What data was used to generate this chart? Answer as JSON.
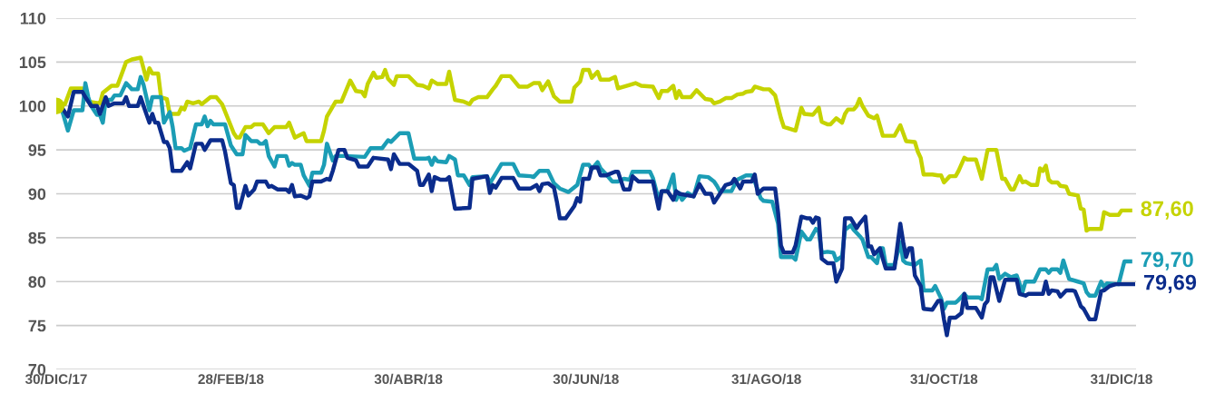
{
  "chart_data": {
    "type": "line",
    "xlim": [
      "2017-12-30",
      "2019-01-05"
    ],
    "xticks": [
      {
        "value": "2017-12-30",
        "label": "30/DIC/17"
      },
      {
        "value": "2018-02-28",
        "label": "28/FEB/18"
      },
      {
        "value": "2018-04-30",
        "label": "30/ABR/18"
      },
      {
        "value": "2018-06-30",
        "label": "30/JUN/18"
      },
      {
        "value": "2018-08-31",
        "label": "31/AGO/18"
      },
      {
        "value": "2018-10-31",
        "label": "31/OCT/18"
      },
      {
        "value": "2018-12-31",
        "label": "31/DIC/18"
      }
    ],
    "ylim": [
      70,
      110
    ],
    "yticks": [
      70,
      75,
      80,
      85,
      90,
      95,
      100,
      105,
      110
    ],
    "grid": "y",
    "annotations": [
      "87,60",
      "79,70",
      "79,69"
    ],
    "series": [
      {
        "color": "#c5d300",
        "x": [
          "2017-12-30",
          "2018-01-02",
          "2018-01-04",
          "2018-01-08",
          "2018-01-10",
          "2018-01-14",
          "2018-01-15",
          "2018-01-18",
          "2018-01-20",
          "2018-01-23",
          "2018-01-25",
          "2018-01-28",
          "2018-01-30",
          "2018-01-31",
          "2018-02-01",
          "2018-02-03",
          "2018-02-04",
          "2018-02-06",
          "2018-02-07",
          "2018-02-10",
          "2018-02-11",
          "2018-02-12",
          "2018-02-13",
          "2018-02-15",
          "2018-02-17",
          "2018-02-18",
          "2018-02-21",
          "2018-02-23",
          "2018-02-25",
          "2018-03-01",
          "2018-03-02",
          "2018-03-03",
          "2018-03-05",
          "2018-03-07",
          "2018-03-08",
          "2018-03-11",
          "2018-03-13",
          "2018-03-15",
          "2018-03-19",
          "2018-03-20",
          "2018-03-22",
          "2018-03-25",
          "2018-03-26",
          "2018-03-31",
          "2018-04-01",
          "2018-04-02",
          "2018-04-05",
          "2018-04-07",
          "2018-04-10",
          "2018-04-12",
          "2018-04-14",
          "2018-04-15",
          "2018-04-16",
          "2018-04-18",
          "2018-04-19",
          "2018-04-21",
          "2018-04-22",
          "2018-04-23",
          "2018-04-25",
          "2018-04-26",
          "2018-04-30",
          "2018-05-03",
          "2018-05-05",
          "2018-05-07",
          "2018-05-08",
          "2018-05-10",
          "2018-05-13",
          "2018-05-14",
          "2018-05-16",
          "2018-05-19",
          "2018-05-21",
          "2018-05-22",
          "2018-05-24",
          "2018-05-27",
          "2018-05-29",
          "2018-05-30",
          "2018-06-01",
          "2018-06-04",
          "2018-06-07",
          "2018-06-10",
          "2018-06-12",
          "2018-06-14",
          "2018-06-15",
          "2018-06-17",
          "2018-06-19",
          "2018-06-21",
          "2018-06-25",
          "2018-06-26",
          "2018-06-28",
          "2018-06-29",
          "2018-07-01",
          "2018-07-02",
          "2018-07-04",
          "2018-07-05",
          "2018-07-08",
          "2018-07-10",
          "2018-07-11",
          "2018-07-15",
          "2018-07-17",
          "2018-07-19",
          "2018-07-23",
          "2018-07-25",
          "2018-07-26",
          "2018-07-28",
          "2018-07-30",
          "2018-07-31",
          "2018-08-01",
          "2018-08-02",
          "2018-08-05",
          "2018-08-07",
          "2018-08-10",
          "2018-08-12",
          "2018-08-13",
          "2018-08-15",
          "2018-08-17",
          "2018-08-19",
          "2018-08-21",
          "2018-08-23",
          "2018-08-24",
          "2018-08-26",
          "2018-08-27",
          "2018-08-30",
          "2018-09-01",
          "2018-09-03",
          "2018-09-05",
          "2018-09-06",
          "2018-09-08",
          "2018-09-10",
          "2018-09-12",
          "2018-09-13",
          "2018-09-16",
          "2018-09-18",
          "2018-09-19",
          "2018-09-21",
          "2018-09-22",
          "2018-09-24",
          "2018-09-26",
          "2018-09-27",
          "2018-09-28",
          "2018-09-30",
          "2018-10-01",
          "2018-10-02",
          "2018-10-03",
          "2018-10-05",
          "2018-10-07",
          "2018-10-08",
          "2018-10-10",
          "2018-10-14",
          "2018-10-16",
          "2018-10-18",
          "2018-10-21",
          "2018-10-22",
          "2018-10-23",
          "2018-10-24",
          "2018-10-27",
          "2018-10-29",
          "2018-10-30",
          "2018-10-31",
          "2018-11-02",
          "2018-11-04",
          "2018-11-05",
          "2018-11-07",
          "2018-11-08",
          "2018-11-11",
          "2018-11-13",
          "2018-11-15",
          "2018-11-18",
          "2018-11-20",
          "2018-11-21",
          "2018-11-23",
          "2018-11-24",
          "2018-11-26",
          "2018-11-27",
          "2018-11-28",
          "2018-11-30",
          "2018-12-02",
          "2018-12-03",
          "2018-12-04",
          "2018-12-05",
          "2018-12-06",
          "2018-12-07",
          "2018-12-09",
          "2018-12-10",
          "2018-12-12",
          "2018-12-13",
          "2018-12-16",
          "2018-12-17",
          "2018-12-18",
          "2018-12-19",
          "2018-12-20",
          "2018-12-24",
          "2018-12-25",
          "2018-12-27",
          "2018-12-30",
          "2018-12-31",
          "2019-01-03"
        ],
        "values": [
          100,
          100.2,
          102,
          102,
          100.5,
          100.3,
          101.5,
          102.3,
          102.3,
          105,
          105.3,
          105.5,
          103,
          104.3,
          103.7,
          103.7,
          101,
          100.8,
          99.1,
          99.1,
          99.8,
          99.6,
          100.5,
          100.3,
          100.5,
          100.2,
          101,
          101,
          100.2,
          96.9,
          96.4,
          96.4,
          97.6,
          97.6,
          97.9,
          97.9,
          96.9,
          97.6,
          97.6,
          98.1,
          96.4,
          96.9,
          96.0,
          96.0,
          97.2,
          98.8,
          100.5,
          100.5,
          102.9,
          101.7,
          101.6,
          101.1,
          102.5,
          103.8,
          103.2,
          103.3,
          104.1,
          103.1,
          102.4,
          103.4,
          103.4,
          102.4,
          102.3,
          102,
          102.9,
          102.5,
          102.5,
          103.9,
          100.7,
          100.5,
          100.2,
          100.7,
          101,
          101,
          101.9,
          102.3,
          103.4,
          103.4,
          102.2,
          102.2,
          102.6,
          102.6,
          101.8,
          102.8,
          101.1,
          100.5,
          100.5,
          102.1,
          102.8,
          104.1,
          104.1,
          103.2,
          103.9,
          103,
          103,
          103.3,
          102,
          102.4,
          102.6,
          102.3,
          102.2,
          100.9,
          101.7,
          101.7,
          102.3,
          100.9,
          101.7,
          101,
          101,
          101.8,
          100.8,
          100.7,
          100.3,
          100.5,
          100.9,
          100.9,
          101.3,
          101.4,
          101.6,
          101.7,
          102.2,
          101.9,
          101.9,
          101.2,
          98.6,
          97.6,
          97.4,
          97.2,
          99.8,
          99.1,
          99.0,
          99.8,
          98.2,
          97.9,
          97.9,
          98.6,
          98.1,
          99.1,
          99.6,
          99.6,
          100.0,
          100.8,
          100,
          98.9,
          98.6,
          98.9,
          96.6,
          96.6,
          97.8,
          96.0,
          95.9,
          94.8,
          94.1,
          92.2,
          92.2,
          92.1,
          92.1,
          91.3,
          92.0,
          92.0,
          92.6,
          94.1,
          93.9,
          93.9,
          91.7,
          95.0,
          95.0,
          91.7,
          91.7,
          90.5,
          90.5,
          92.0,
          91.3,
          91.4,
          91.0,
          91.0,
          92.9,
          92.6,
          93.2,
          91.6,
          91.3,
          91.3,
          90.9,
          90.8,
          90.0,
          89.8,
          88.3,
          88.2,
          85.8,
          86.0,
          86.0,
          87.9,
          87.6,
          87.6,
          88.1,
          88.1
        ]
      },
      {
        "color": "#1b9db5",
        "x": [
          "2017-12-30",
          "2018-01-01",
          "2018-01-03",
          "2018-01-05",
          "2018-01-08",
          "2018-01-09",
          "2018-01-10",
          "2018-01-11",
          "2018-01-13",
          "2018-01-14",
          "2018-01-15",
          "2018-01-16",
          "2018-01-18",
          "2018-01-19",
          "2018-01-21",
          "2018-01-23",
          "2018-01-25",
          "2018-01-27",
          "2018-01-28",
          "2018-01-29",
          "2018-01-31",
          "2018-02-01",
          "2018-02-04",
          "2018-02-05",
          "2018-02-07",
          "2018-02-08",
          "2018-02-09",
          "2018-02-11",
          "2018-02-12",
          "2018-02-14",
          "2018-02-16",
          "2018-02-18",
          "2018-02-19",
          "2018-02-20",
          "2018-02-21",
          "2018-02-22",
          "2018-02-26",
          "2018-02-28",
          "2018-03-02",
          "2018-03-04",
          "2018-03-05",
          "2018-03-07",
          "2018-03-09",
          "2018-03-10",
          "2018-03-11",
          "2018-03-12",
          "2018-03-13",
          "2018-03-15",
          "2018-03-16",
          "2018-03-19",
          "2018-03-20",
          "2018-03-21",
          "2018-03-22",
          "2018-03-24",
          "2018-03-25",
          "2018-03-27",
          "2018-03-28",
          "2018-03-31",
          "2018-04-01",
          "2018-04-02",
          "2018-04-04",
          "2018-04-05",
          "2018-04-08",
          "2018-04-15",
          "2018-04-17",
          "2018-04-21",
          "2018-04-23",
          "2018-04-24",
          "2018-04-27",
          "2018-04-30",
          "2018-05-02",
          "2018-05-06",
          "2018-05-07",
          "2018-05-08",
          "2018-05-09",
          "2018-05-10",
          "2018-05-13",
          "2018-05-14",
          "2018-05-16",
          "2018-05-17",
          "2018-05-19",
          "2018-05-21",
          "2018-05-22",
          "2018-05-27",
          "2018-05-28",
          "2018-06-01",
          "2018-06-05",
          "2018-06-07",
          "2018-06-11",
          "2018-06-12",
          "2018-06-14",
          "2018-06-17",
          "2018-06-19",
          "2018-06-21",
          "2018-06-24",
          "2018-06-27",
          "2018-06-29",
          "2018-07-01",
          "2018-07-02",
          "2018-07-04",
          "2018-07-05",
          "2018-07-07",
          "2018-07-09",
          "2018-07-11",
          "2018-07-13",
          "2018-07-15",
          "2018-07-16",
          "2018-07-22",
          "2018-07-23",
          "2018-07-25",
          "2018-07-26",
          "2018-07-28",
          "2018-07-30",
          "2018-07-31",
          "2018-08-01",
          "2018-08-02",
          "2018-08-04",
          "2018-08-06",
          "2018-08-08",
          "2018-08-11",
          "2018-08-13",
          "2018-08-14",
          "2018-08-15",
          "2018-08-19",
          "2018-08-21",
          "2018-08-24",
          "2018-08-26",
          "2018-08-27",
          "2018-08-29",
          "2018-08-30",
          "2018-09-02",
          "2018-09-04",
          "2018-09-05",
          "2018-09-09",
          "2018-09-10",
          "2018-09-12",
          "2018-09-14",
          "2018-09-15",
          "2018-09-17",
          "2018-09-18",
          "2018-09-19",
          "2018-09-21",
          "2018-09-23",
          "2018-09-24",
          "2018-09-26",
          "2018-09-27",
          "2018-09-29",
          "2018-09-30",
          "2018-10-02",
          "2018-10-03",
          "2018-10-05",
          "2018-10-06",
          "2018-10-08",
          "2018-10-09",
          "2018-10-10",
          "2018-10-11",
          "2018-10-14",
          "2018-10-16",
          "2018-10-17",
          "2018-10-18",
          "2018-10-21",
          "2018-10-23",
          "2018-10-24",
          "2018-10-27",
          "2018-10-28",
          "2018-10-30",
          "2018-10-31",
          "2018-11-01",
          "2018-11-04",
          "2018-11-05",
          "2018-11-07",
          "2018-11-08",
          "2018-11-12",
          "2018-11-13",
          "2018-11-15",
          "2018-11-17",
          "2018-11-18",
          "2018-11-19",
          "2018-11-21",
          "2018-11-23",
          "2018-11-25",
          "2018-11-27",
          "2018-11-28",
          "2018-12-01",
          "2018-12-03",
          "2018-12-05",
          "2018-12-06",
          "2018-12-07",
          "2018-12-09",
          "2018-12-10",
          "2018-12-11",
          "2018-12-13",
          "2018-12-16",
          "2018-12-18",
          "2018-12-19",
          "2018-12-20",
          "2018-12-22",
          "2018-12-24",
          "2018-12-25",
          "2018-12-26",
          "2018-12-30",
          "2019-01-01",
          "2019-01-03"
        ],
        "values": [
          100,
          99.5,
          97.2,
          99.5,
          99.5,
          102.6,
          101,
          100,
          99,
          99,
          98.1,
          100.7,
          100.7,
          101.2,
          101.2,
          102.6,
          101.9,
          101.9,
          103.3,
          102.4,
          99.5,
          101,
          101,
          98.1,
          99.3,
          97.6,
          95.2,
          95.2,
          94.9,
          95.2,
          97.9,
          97.9,
          98.8,
          97.7,
          98.3,
          97.9,
          97.9,
          95.5,
          94.5,
          94.5,
          96.7,
          96.0,
          96.0,
          95.7,
          95.7,
          96.0,
          94.3,
          93.1,
          94.3,
          94.3,
          93.2,
          93.5,
          93.3,
          93.3,
          92.1,
          90.9,
          92.4,
          92.4,
          93.3,
          95.7,
          93.8,
          94.3,
          94.3,
          94.2,
          95.2,
          95.2,
          96.1,
          95.9,
          96.9,
          96.9,
          94.0,
          94.0,
          94.1,
          93.3,
          94.1,
          93.7,
          93.6,
          94.3,
          93.9,
          92.1,
          92.1,
          91.0,
          91.9,
          92.0,
          91.2,
          93.4,
          93.4,
          92.1,
          92.0,
          91.9,
          92.6,
          92.6,
          91.2,
          90.6,
          90.2,
          91.0,
          93.3,
          93.3,
          92.8,
          93.6,
          92.9,
          92.2,
          91.4,
          91.4,
          91.7,
          91.6,
          92.5,
          92.5,
          91.8,
          89.3,
          90.3,
          90.3,
          92.2,
          89.3,
          90.1,
          89.3,
          90.1,
          89.7,
          92.0,
          91.9,
          91.4,
          90.9,
          90.3,
          90.3,
          91.6,
          92.1,
          92.1,
          91.4,
          89.5,
          89.2,
          89.1,
          86.6,
          82.8,
          82.8,
          82.5,
          85.7,
          84.8,
          84.8,
          86.0,
          85.7,
          83.3,
          83.4,
          83.3,
          82.4,
          82.9,
          85.9,
          86.4,
          85.9,
          85.2,
          84.8,
          82.8,
          82.8,
          82.1,
          83.8,
          83.8,
          81.9,
          81.9,
          84.5,
          82.4,
          82.1,
          81.9,
          82.4,
          79.0,
          79.0,
          79.5,
          78.1,
          76.9,
          77.6,
          77.6,
          77.9,
          78.6,
          78.2,
          78.2,
          78.0,
          81.4,
          81.4,
          81.9,
          80.3,
          80.9,
          80.5,
          80.7,
          78.8,
          80.0,
          80.0,
          81.4,
          81.4,
          81.0,
          81.4,
          81.4,
          81.0,
          82.4,
          80.3,
          80.0,
          79.8,
          78.8,
          78.4,
          78.4,
          80.0,
          79.4,
          79.8,
          79.7,
          82.3,
          82.3
        ]
      },
      {
        "color": "#0b2c8c",
        "x": [
          "2017-12-30",
          "2018-01-01",
          "2018-01-03",
          "2018-01-05",
          "2018-01-08",
          "2018-01-09",
          "2018-01-11",
          "2018-01-13",
          "2018-01-14",
          "2018-01-16",
          "2018-01-17",
          "2018-01-19",
          "2018-01-22",
          "2018-01-23",
          "2018-01-24",
          "2018-01-27",
          "2018-01-28",
          "2018-01-29",
          "2018-01-31",
          "2018-02-01",
          "2018-02-02",
          "2018-02-03",
          "2018-02-05",
          "2018-02-06",
          "2018-02-07",
          "2018-02-08",
          "2018-02-11",
          "2018-02-13",
          "2018-02-14",
          "2018-02-16",
          "2018-02-18",
          "2018-02-19",
          "2018-02-21",
          "2018-02-25",
          "2018-02-26",
          "2018-02-28",
          "2018-03-01",
          "2018-03-02",
          "2018-03-03",
          "2018-03-05",
          "2018-03-06",
          "2018-03-08",
          "2018-03-09",
          "2018-03-12",
          "2018-03-13",
          "2018-03-14",
          "2018-03-16",
          "2018-03-19",
          "2018-03-20",
          "2018-03-21",
          "2018-03-22",
          "2018-03-24",
          "2018-03-26",
          "2018-03-27",
          "2018-03-28",
          "2018-03-31",
          "2018-04-02",
          "2018-04-03",
          "2018-04-04",
          "2018-04-06",
          "2018-04-08",
          "2018-04-09",
          "2018-04-12",
          "2018-04-13",
          "2018-04-16",
          "2018-04-18",
          "2018-04-23",
          "2018-04-24",
          "2018-04-25",
          "2018-04-27",
          "2018-04-30",
          "2018-05-03",
          "2018-05-04",
          "2018-05-05",
          "2018-05-07",
          "2018-05-08",
          "2018-05-09",
          "2018-05-11",
          "2018-05-13",
          "2018-05-14",
          "2018-05-16",
          "2018-05-21",
          "2018-05-22",
          "2018-05-27",
          "2018-05-28",
          "2018-05-29",
          "2018-05-30",
          "2018-06-01",
          "2018-06-05",
          "2018-06-07",
          "2018-06-11",
          "2018-06-13",
          "2018-06-14",
          "2018-06-15",
          "2018-06-17",
          "2018-06-19",
          "2018-06-20",
          "2018-06-21",
          "2018-06-23",
          "2018-06-26",
          "2018-06-27",
          "2018-06-28",
          "2018-06-29",
          "2018-07-01",
          "2018-07-02",
          "2018-07-04",
          "2018-07-05",
          "2018-07-07",
          "2018-07-10",
          "2018-07-11",
          "2018-07-13",
          "2018-07-15",
          "2018-07-16",
          "2018-07-18",
          "2018-07-23",
          "2018-07-25",
          "2018-07-26",
          "2018-07-28",
          "2018-07-30",
          "2018-07-31",
          "2018-08-01",
          "2018-08-06",
          "2018-08-08",
          "2018-08-10",
          "2018-08-12",
          "2018-08-13",
          "2018-08-15",
          "2018-08-17",
          "2018-08-19",
          "2018-08-20",
          "2018-08-22",
          "2018-08-23",
          "2018-08-26",
          "2018-08-27",
          "2018-08-28",
          "2018-08-30",
          "2018-09-03",
          "2018-09-04",
          "2018-09-05",
          "2018-09-06",
          "2018-09-09",
          "2018-09-10",
          "2018-09-12",
          "2018-09-14",
          "2018-09-15",
          "2018-09-16",
          "2018-09-17",
          "2018-09-18",
          "2018-09-19",
          "2018-09-21",
          "2018-09-23",
          "2018-09-24",
          "2018-09-26",
          "2018-09-27",
          "2018-09-29",
          "2018-10-01",
          "2018-10-02",
          "2018-10-04",
          "2018-10-05",
          "2018-10-06",
          "2018-10-07",
          "2018-10-09",
          "2018-10-10",
          "2018-10-11",
          "2018-10-14",
          "2018-10-16",
          "2018-10-17",
          "2018-10-18",
          "2018-10-19",
          "2018-10-20",
          "2018-10-21",
          "2018-10-23",
          "2018-10-24",
          "2018-10-27",
          "2018-10-29",
          "2018-10-30",
          "2018-10-31",
          "2018-11-01",
          "2018-11-02",
          "2018-11-04",
          "2018-11-06",
          "2018-11-07",
          "2018-11-08",
          "2018-11-11",
          "2018-11-13",
          "2018-11-14",
          "2018-11-15",
          "2018-11-16",
          "2018-11-17",
          "2018-11-19",
          "2018-11-21",
          "2018-11-25",
          "2018-11-26",
          "2018-11-28",
          "2018-11-29",
          "2018-12-04",
          "2018-12-05",
          "2018-12-06",
          "2018-12-07",
          "2018-12-09",
          "2018-12-10",
          "2018-12-12",
          "2018-12-14",
          "2018-12-15",
          "2018-12-16",
          "2018-12-17",
          "2018-12-18",
          "2018-12-20",
          "2018-12-22",
          "2018-12-24",
          "2018-12-25",
          "2018-12-27",
          "2018-12-29",
          "2019-01-04"
        ],
        "values": [
          100,
          99.8,
          98.8,
          101.6,
          101.6,
          101,
          100,
          100,
          99.1,
          101,
          100,
          100.3,
          100.3,
          101,
          100,
          100,
          101,
          100,
          98.1,
          99.1,
          98.1,
          98.1,
          95.9,
          95.9,
          95.2,
          92.6,
          92.6,
          93.6,
          92.9,
          95.7,
          95.7,
          95,
          96.1,
          96.1,
          94.8,
          91.2,
          91,
          88.4,
          88.4,
          90.9,
          89.8,
          90.5,
          91.4,
          91.4,
          90.8,
          90.9,
          90.5,
          90.5,
          90.2,
          91.0,
          89.7,
          89.8,
          89.5,
          89.7,
          91.4,
          91.4,
          91.7,
          91.6,
          92.6,
          95,
          95,
          94.1,
          93.8,
          93.1,
          93.1,
          94.1,
          93.9,
          92.8,
          94.5,
          93.4,
          93.4,
          92.6,
          91.0,
          91.0,
          92.2,
          90.3,
          91.9,
          91.6,
          91.6,
          91.9,
          88.3,
          88.4,
          91.7,
          92.0,
          90.1,
          91.0,
          90.7,
          91.8,
          91.8,
          90.6,
          90.6,
          91.0,
          90.3,
          91.1,
          91.2,
          90.7,
          89.1,
          87.2,
          87.2,
          88.6,
          89.5,
          89.1,
          91.7,
          91.7,
          93.0,
          93.0,
          92.1,
          92.1,
          92.5,
          92.5,
          90.5,
          90.5,
          92.0,
          91.4,
          91.4,
          88.3,
          90.3,
          90.3,
          89.3,
          90.3,
          90.0,
          89.7,
          91.1,
          90.0,
          90.0,
          89.0,
          90.0,
          91.0,
          91.2,
          91.7,
          90.6,
          91.4,
          91.4,
          92.2,
          90.0,
          90.6,
          90.6,
          87.9,
          84.1,
          83.3,
          83.3,
          84.1,
          87.4,
          87.2,
          87.2,
          86.7,
          87.3,
          87.2,
          82.6,
          82.1,
          82.1,
          80.0,
          81.5,
          87.2,
          87.2,
          86.1,
          86.6,
          87.4,
          84.0,
          84.0,
          83.1,
          83.8,
          82.6,
          81.5,
          81.5,
          86.6,
          84.5,
          82.8,
          83.8,
          83.8,
          80.7,
          79.5,
          76.9,
          76.8,
          77.8,
          77.8,
          75.7,
          73.9,
          75.9,
          75.9,
          76.4,
          78.6,
          77.0,
          77.0,
          75.9,
          77.4,
          77.8,
          80.5,
          80.5,
          77.8,
          80.2,
          80.2,
          78.6,
          78.4,
          78.6,
          78.6,
          80.0,
          78.6,
          79.0,
          78.9,
          78.3,
          79.0,
          79.0,
          78.9,
          78.1,
          77.2,
          76.9,
          75.7,
          75.7,
          78.9,
          79.0,
          79.5,
          79.7,
          79.7
        ]
      },
      {
        "type": "scatter",
        "marker": "circle",
        "color": "#c5d300",
        "x": [
          "2017-12-30"
        ],
        "values": [
          100
        ]
      }
    ]
  }
}
